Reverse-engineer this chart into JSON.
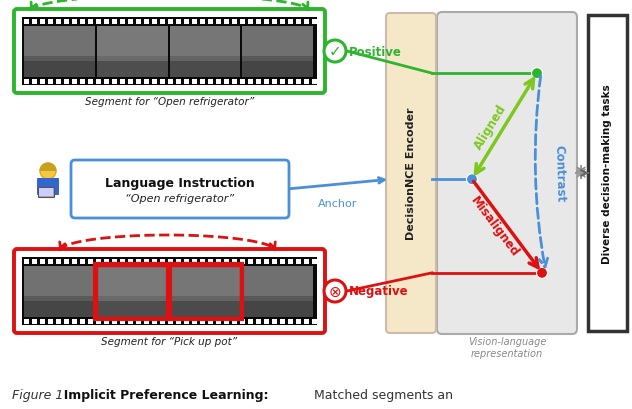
{
  "bg_color": "#ffffff",
  "film_strip_color": "#0a0a0a",
  "film_hole_color": "#ffffff",
  "positive_box_color": "#2db52d",
  "negative_box_color": "#dd1111",
  "anchor_box_color": "#4a90d9",
  "encoder_box_color": "#f5e8c8",
  "repr_box_color": "#e8e8e8",
  "green_arrow_color": "#7dc820",
  "red_arrow_color": "#dd1111",
  "blue_dash_color": "#4a90d9",
  "blue_line_color": "#4a90d9",
  "red_line_color": "#dd1111",
  "green_line_color": "#2db52d",
  "anchor_label": "Anchor",
  "positive_label": "Positive",
  "negative_label": "Negative",
  "aligned_label": "Aligned",
  "misaligned_label": "Misaligned",
  "contrast_label": "Contrast",
  "encoder_label": "DecisionNCE Encoder",
  "repr_label": "Vision-language\nrepresentation",
  "diverse_label": "Diverse decision-making tasks",
  "lang_title": "Language Instruction",
  "lang_text": "“Open refrigerator”",
  "seg_pos_text": "Segment for “Open refrigerator”",
  "seg_neg_text": "Segment for “Pick up pot”",
  "fig_label": "Figure 1",
  "fig_bold": "  Implicit Preference Learning:",
  "fig_rest": " Matched segments an"
}
